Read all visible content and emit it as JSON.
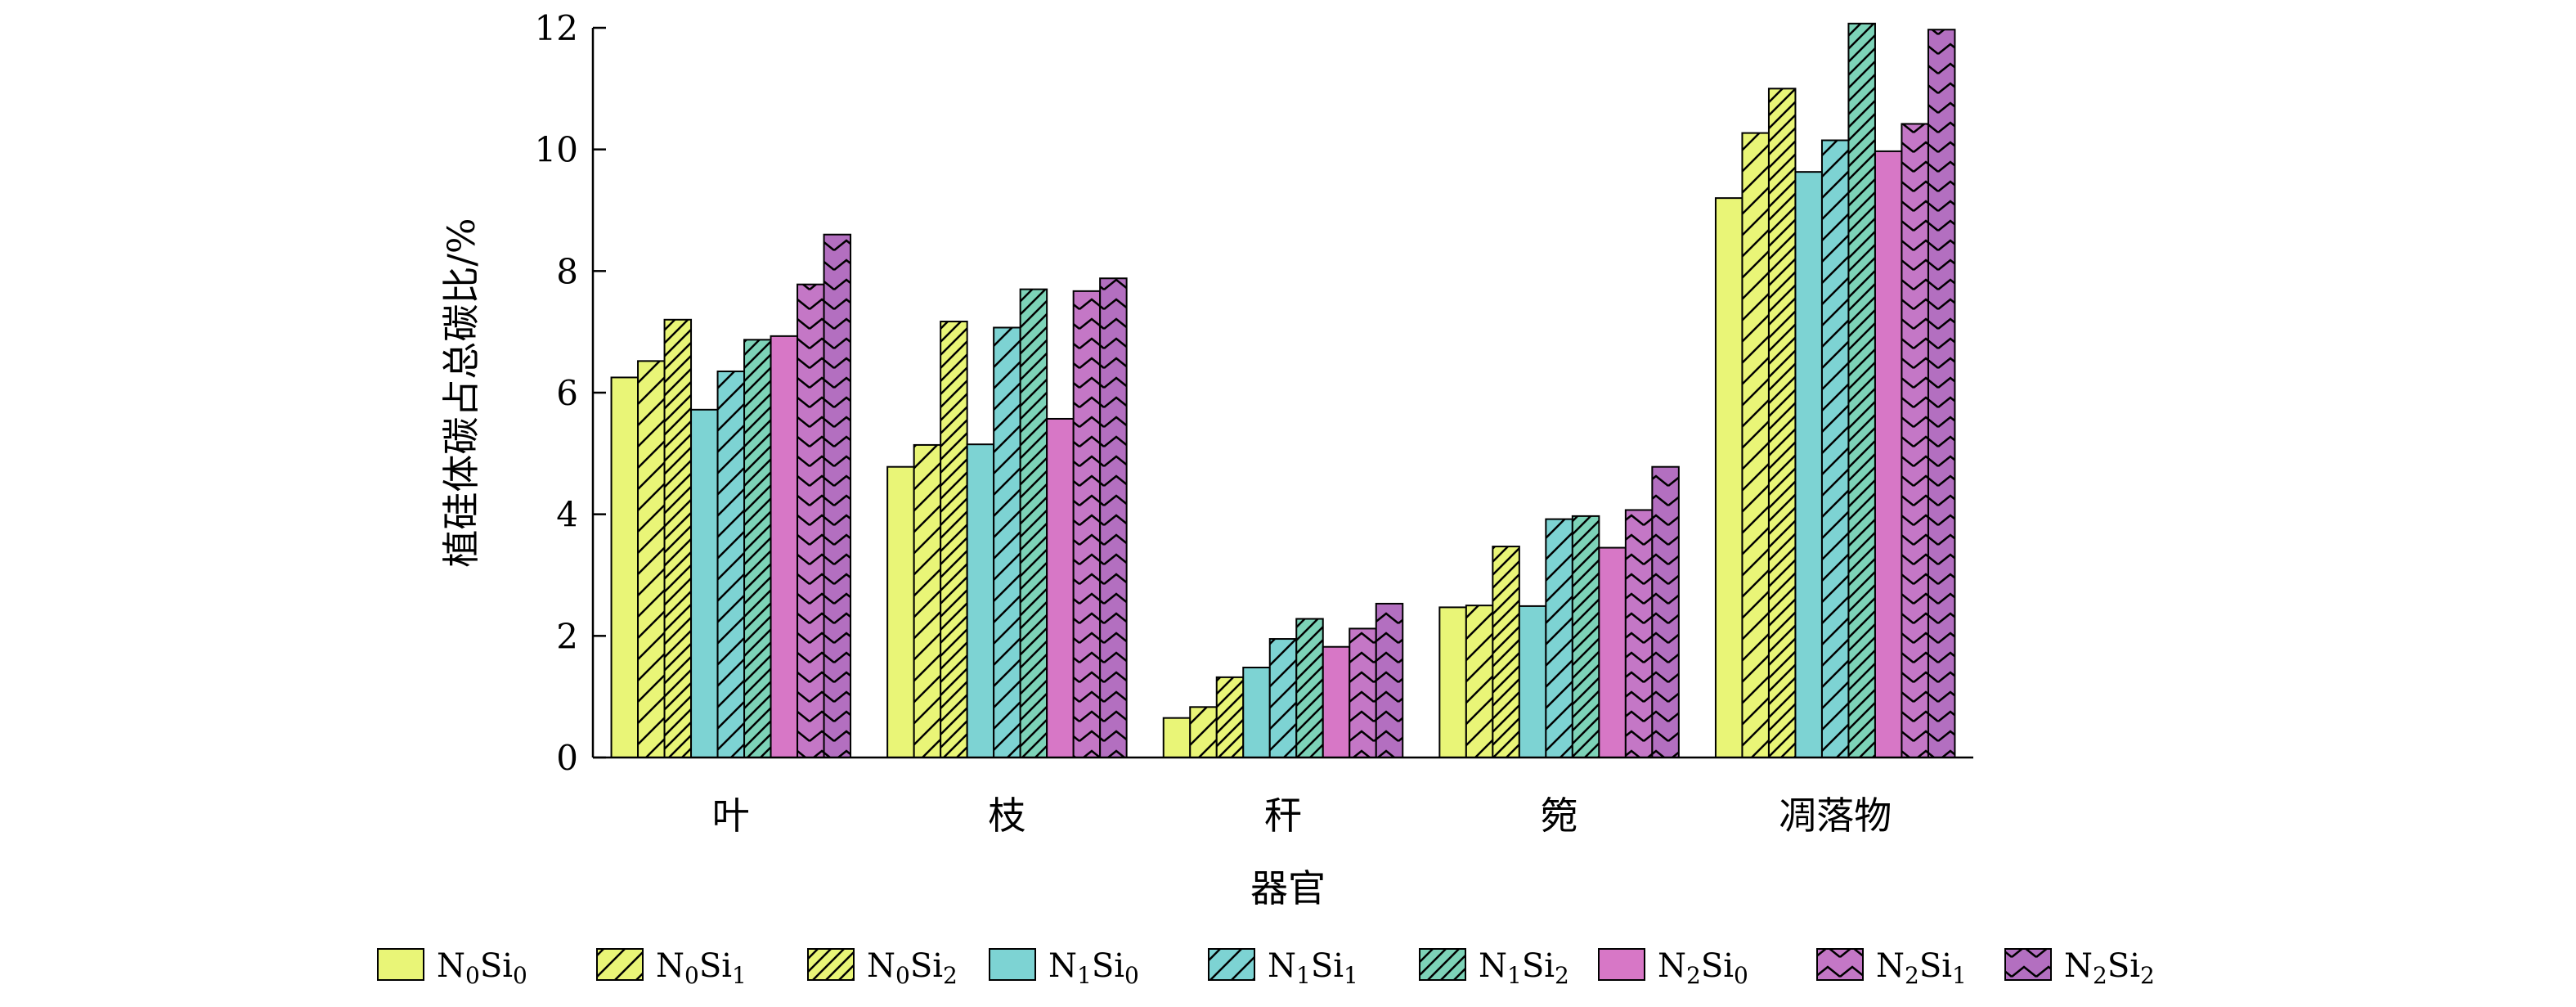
{
  "chart_data": {
    "type": "bar",
    "title": "",
    "xlabel": "器官",
    "ylabel": "植硅体碳占总碳比/%",
    "ylim": [
      0,
      12
    ],
    "yticks": [
      0,
      2,
      4,
      6,
      8,
      10,
      12
    ],
    "grid": false,
    "legend_position": "bottom",
    "categories": [
      "叶",
      "枝",
      "秆",
      "箢",
      "凋落物"
    ],
    "series": [
      {
        "name": "N0Si0",
        "base": "N",
        "sub1": "0",
        "mid": "Si",
        "sub2": "0",
        "color": "#e9f577",
        "pattern": "none",
        "values": [
          6.25,
          4.78,
          0.65,
          2.47,
          9.2
        ]
      },
      {
        "name": "N0Si1",
        "base": "N",
        "sub1": "0",
        "mid": "Si",
        "sub2": "1",
        "color": "#e9f577",
        "pattern": "sparse",
        "values": [
          6.52,
          5.14,
          0.83,
          2.5,
          10.27
        ]
      },
      {
        "name": "N0Si2",
        "base": "N",
        "sub1": "0",
        "mid": "Si",
        "sub2": "2",
        "color": "#e9f577",
        "pattern": "dense",
        "values": [
          7.2,
          7.17,
          1.32,
          3.47,
          11.0
        ]
      },
      {
        "name": "N1Si0",
        "base": "N",
        "sub1": "1",
        "mid": "Si",
        "sub2": "0",
        "color": "#7dd3d3",
        "pattern": "none",
        "values": [
          5.72,
          5.15,
          1.48,
          2.49,
          9.63
        ]
      },
      {
        "name": "N1Si1",
        "base": "N",
        "sub1": "1",
        "mid": "Si",
        "sub2": "1",
        "color": "#7dd3d3",
        "pattern": "sparse",
        "values": [
          6.35,
          7.07,
          1.95,
          3.92,
          10.15
        ]
      },
      {
        "name": "N1Si2",
        "base": "N",
        "sub1": "1",
        "mid": "Si",
        "sub2": "2",
        "color": "#7dd3b8",
        "pattern": "dense",
        "values": [
          6.87,
          7.7,
          2.28,
          3.97,
          12.07
        ]
      },
      {
        "name": "N2Si0",
        "base": "N",
        "sub1": "2",
        "mid": "Si",
        "sub2": "0",
        "color": "#d777c6",
        "pattern": "none",
        "values": [
          6.93,
          5.57,
          1.82,
          3.45,
          9.97
        ]
      },
      {
        "name": "N2Si1",
        "base": "N",
        "sub1": "2",
        "mid": "Si",
        "sub2": "1",
        "color": "#c477c6",
        "pattern": "chevron",
        "values": [
          7.78,
          7.67,
          2.12,
          4.07,
          10.42
        ]
      },
      {
        "name": "N2Si2",
        "base": "N",
        "sub1": "2",
        "mid": "Si",
        "sub2": "2",
        "color": "#b36fc0",
        "pattern": "chevron",
        "values": [
          8.6,
          7.88,
          2.53,
          4.78,
          11.97
        ]
      }
    ]
  }
}
